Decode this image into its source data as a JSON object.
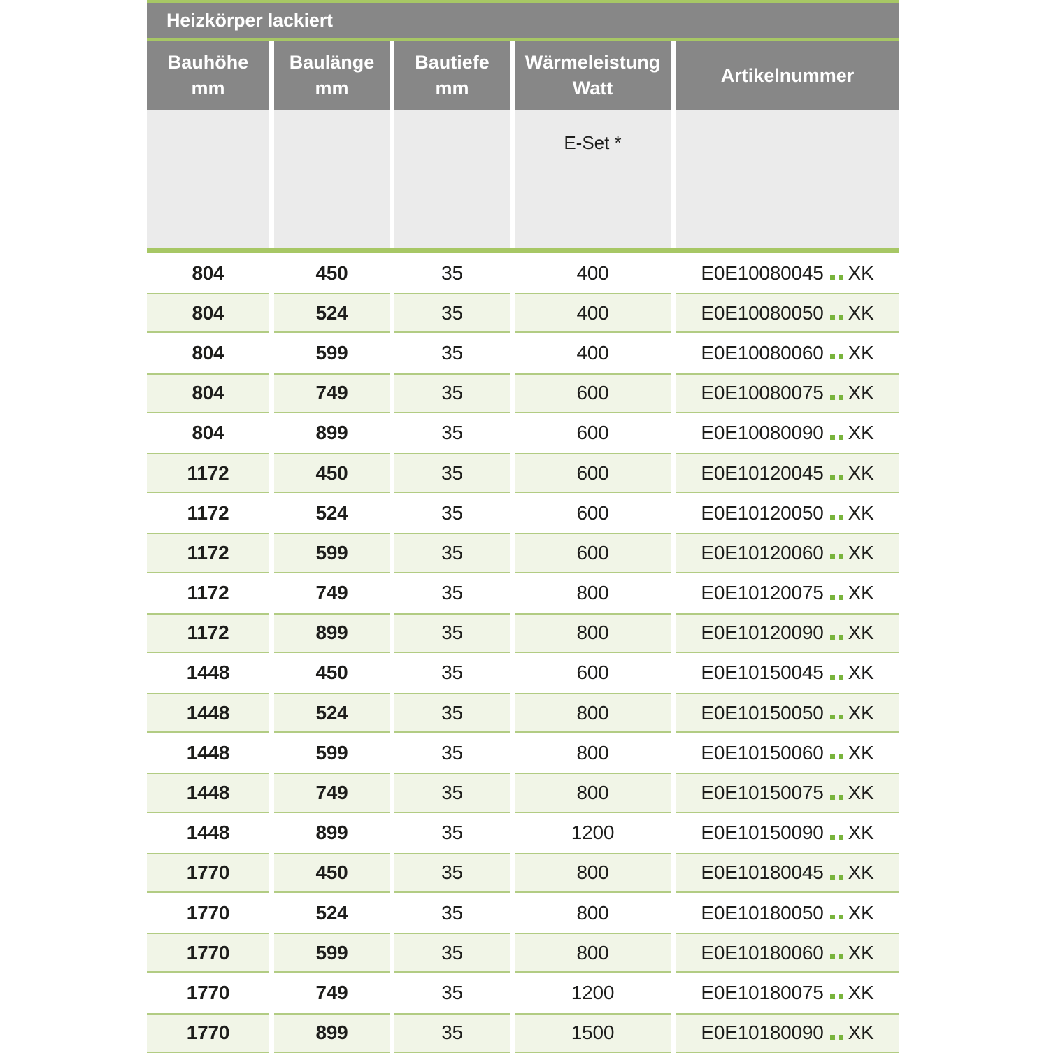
{
  "table": {
    "title": "Heizkörper lackiert",
    "columns": [
      {
        "line1": "Bauhöhe",
        "line2": "mm"
      },
      {
        "line1": "Baulänge",
        "line2": "mm"
      },
      {
        "line1": "Bautiefe",
        "line2": "mm"
      },
      {
        "line1": "Wärmeleistung",
        "line2": "Watt"
      },
      {
        "line1": "Artikelnummer",
        "line2": ""
      }
    ],
    "subheader": {
      "eset_label": "E-Set *"
    },
    "rows": [
      {
        "bauhoehe": "804",
        "baulaenge": "450",
        "bautiefe": "35",
        "waermeleistung": "400",
        "artikel_prefix": "E0E10080045",
        "artikel_suffix": "XK"
      },
      {
        "bauhoehe": "804",
        "baulaenge": "524",
        "bautiefe": "35",
        "waermeleistung": "400",
        "artikel_prefix": "E0E10080050",
        "artikel_suffix": "XK"
      },
      {
        "bauhoehe": "804",
        "baulaenge": "599",
        "bautiefe": "35",
        "waermeleistung": "400",
        "artikel_prefix": "E0E10080060",
        "artikel_suffix": "XK"
      },
      {
        "bauhoehe": "804",
        "baulaenge": "749",
        "bautiefe": "35",
        "waermeleistung": "600",
        "artikel_prefix": "E0E10080075",
        "artikel_suffix": "XK"
      },
      {
        "bauhoehe": "804",
        "baulaenge": "899",
        "bautiefe": "35",
        "waermeleistung": "600",
        "artikel_prefix": "E0E10080090",
        "artikel_suffix": "XK"
      },
      {
        "bauhoehe": "1172",
        "baulaenge": "450",
        "bautiefe": "35",
        "waermeleistung": "600",
        "artikel_prefix": "E0E10120045",
        "artikel_suffix": "XK"
      },
      {
        "bauhoehe": "1172",
        "baulaenge": "524",
        "bautiefe": "35",
        "waermeleistung": "600",
        "artikel_prefix": "E0E10120050",
        "artikel_suffix": "XK"
      },
      {
        "bauhoehe": "1172",
        "baulaenge": "599",
        "bautiefe": "35",
        "waermeleistung": "600",
        "artikel_prefix": "E0E10120060",
        "artikel_suffix": "XK"
      },
      {
        "bauhoehe": "1172",
        "baulaenge": "749",
        "bautiefe": "35",
        "waermeleistung": "800",
        "artikel_prefix": "E0E10120075",
        "artikel_suffix": "XK"
      },
      {
        "bauhoehe": "1172",
        "baulaenge": "899",
        "bautiefe": "35",
        "waermeleistung": "800",
        "artikel_prefix": "E0E10120090",
        "artikel_suffix": "XK"
      },
      {
        "bauhoehe": "1448",
        "baulaenge": "450",
        "bautiefe": "35",
        "waermeleistung": "600",
        "artikel_prefix": "E0E10150045",
        "artikel_suffix": "XK"
      },
      {
        "bauhoehe": "1448",
        "baulaenge": "524",
        "bautiefe": "35",
        "waermeleistung": "800",
        "artikel_prefix": "E0E10150050",
        "artikel_suffix": "XK"
      },
      {
        "bauhoehe": "1448",
        "baulaenge": "599",
        "bautiefe": "35",
        "waermeleistung": "800",
        "artikel_prefix": "E0E10150060",
        "artikel_suffix": "XK"
      },
      {
        "bauhoehe": "1448",
        "baulaenge": "749",
        "bautiefe": "35",
        "waermeleistung": "800",
        "artikel_prefix": "E0E10150075",
        "artikel_suffix": "XK"
      },
      {
        "bauhoehe": "1448",
        "baulaenge": "899",
        "bautiefe": "35",
        "waermeleistung": "1200",
        "artikel_prefix": "E0E10150090",
        "artikel_suffix": "XK"
      },
      {
        "bauhoehe": "1770",
        "baulaenge": "450",
        "bautiefe": "35",
        "waermeleistung": "800",
        "artikel_prefix": "E0E10180045",
        "artikel_suffix": "XK"
      },
      {
        "bauhoehe": "1770",
        "baulaenge": "524",
        "bautiefe": "35",
        "waermeleistung": "800",
        "artikel_prefix": "E0E10180050",
        "artikel_suffix": "XK"
      },
      {
        "bauhoehe": "1770",
        "baulaenge": "599",
        "bautiefe": "35",
        "waermeleistung": "800",
        "artikel_prefix": "E0E10180060",
        "artikel_suffix": "XK"
      },
      {
        "bauhoehe": "1770",
        "baulaenge": "749",
        "bautiefe": "35",
        "waermeleistung": "1200",
        "artikel_prefix": "E0E10180075",
        "artikel_suffix": "XK"
      },
      {
        "bauhoehe": "1770",
        "baulaenge": "899",
        "bautiefe": "35",
        "waermeleistung": "1500",
        "artikel_prefix": "E0E10180090",
        "artikel_suffix": "XK"
      }
    ],
    "colors": {
      "header_gray": "#878787",
      "subheader_gray": "#ebebeb",
      "separator_green": "#a7c765",
      "row_border_green": "#b2cc83",
      "row_bg_green": "#f1f5e7",
      "dot_green": "#79b43c",
      "text": "#1d1d1b",
      "header_text": "#ffffff"
    }
  }
}
